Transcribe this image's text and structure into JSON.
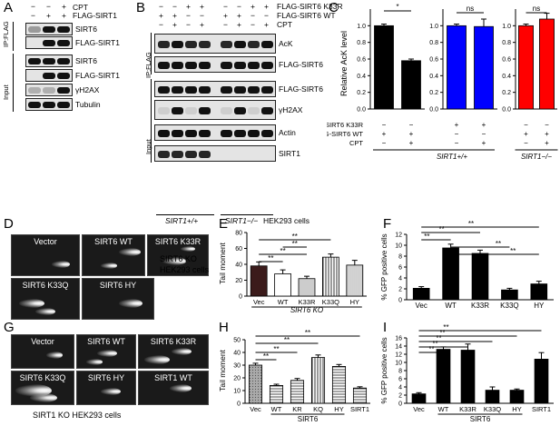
{
  "panels": {
    "A": {
      "letter": "A",
      "cpt_label": "CPT",
      "flag_label": "FLAG-SIRT1",
      "signs_cpt": [
        "−",
        "−",
        "+"
      ],
      "signs_flag": [
        "−",
        "+",
        "+"
      ],
      "ip_label": "IP:FLAG",
      "input_label": "Input",
      "ip_blots": [
        "SIRT6",
        "FLAG-SIRT1"
      ],
      "input_blots": [
        "SIRT6",
        "FLAG-SIRT1",
        "γH2AX",
        "Tubulin"
      ]
    },
    "B": {
      "letter": "B",
      "row_labels": [
        "FLAG-SIRT6 K33R",
        "FLAG-SIRT6 WT",
        "CPT"
      ],
      "signs": [
        [
          "−",
          "−",
          "+",
          "+",
          "−",
          "−",
          "+",
          "+"
        ],
        [
          "+",
          "+",
          "−",
          "−",
          "+",
          "+",
          "−",
          "−"
        ],
        [
          "−",
          "+",
          "−",
          "+",
          "−",
          "+",
          "−",
          "+"
        ]
      ],
      "ip_label": "IP:FLAG",
      "input_label": "Input",
      "ip_blots": [
        "AcK",
        "FLAG-SIRT6"
      ],
      "input_blots": [
        "FLAG-SIRT6",
        "γH2AX",
        "Actin",
        "SIRT1"
      ],
      "genotype_1": "SIRT1+/+",
      "genotype_2": "SIRT1−/−",
      "cells": "HEK293 cells"
    },
    "C": {
      "letter": "C",
      "ylabel": "Relative AcK level",
      "row_labels": [
        "FLAG-SIRT6 K33R",
        "FLAG-SIRT6 WT",
        "CPT"
      ],
      "genotype_1": "SIRT1+/+",
      "genotype_2": "SIRT1−/−",
      "sig_1": "*",
      "sig_2": "ns",
      "sig_3": "ns",
      "tick_labels": [
        "0.0",
        "0.2",
        "0.4",
        "0.6",
        "0.8",
        "1.0"
      ],
      "signs_k33r": [
        "−",
        "−",
        "+",
        "+",
        "−",
        "−"
      ],
      "signs_wt": [
        "+",
        "+",
        "−",
        "−",
        "+",
        "+"
      ],
      "signs_cpt": [
        "−",
        "+",
        "−",
        "+",
        "−",
        "+"
      ]
    },
    "D": {
      "letter": "D",
      "images": [
        "Vector",
        "SIRT6 WT",
        "SIRT6 K33R",
        "SIRT6 K33Q",
        "SIRT6 HY"
      ],
      "caption_1": "SIRT6 KO",
      "caption_2": "HEK293 cells"
    },
    "E": {
      "letter": "E",
      "ylabel": "Tail moment",
      "xlabel": "SIRT6 KO",
      "sig": [
        "**",
        "**",
        "**",
        "**"
      ],
      "tick_labels": [
        "0",
        "20",
        "40",
        "60",
        "80"
      ]
    },
    "F": {
      "letter": "F",
      "ylabel": "% GFP positive cells",
      "sig": [
        "**",
        "**",
        "**",
        "**",
        "**"
      ],
      "tick_labels": [
        "0",
        "2",
        "4",
        "6",
        "8",
        "10",
        "12"
      ]
    },
    "G": {
      "letter": "G",
      "images": [
        "Vector",
        "SIRT6 WT",
        "SIRT6 K33R",
        "SIRT6 K33Q",
        "SIRT6 HY",
        "SIRT1 WT"
      ],
      "caption": "SIRT1 KO HEK293 cells"
    },
    "H": {
      "letter": "H",
      "ylabel": "Tail moment",
      "xlabel": "SIRT6",
      "sig": [
        "**",
        "**",
        "**",
        "**"
      ],
      "tick_labels": [
        "0",
        "10",
        "20",
        "30",
        "40",
        "50"
      ]
    },
    "I": {
      "letter": "I",
      "ylabel": "% GFP positive cells",
      "xlabel": "SIRT6",
      "sig": [
        "**",
        "**",
        "**",
        "**",
        "**"
      ],
      "tick_labels": [
        "0",
        "2",
        "4",
        "6",
        "8",
        "10",
        "12",
        "14",
        "16"
      ]
    }
  },
  "chart_data": [
    {
      "id": "C-left",
      "type": "bar",
      "categories": [
        "WT",
        "WT+CPT"
      ],
      "values": [
        1.0,
        0.58
      ],
      "errors": [
        0.02,
        0.02
      ],
      "ylim": [
        0,
        1.2
      ],
      "color": "#000000"
    },
    {
      "id": "C-middle",
      "type": "bar",
      "categories": [
        "K33R",
        "K33R+CPT"
      ],
      "values": [
        1.0,
        0.99
      ],
      "errors": [
        0.02,
        0.09
      ],
      "ylim": [
        0,
        1.2
      ],
      "color": "#0000ff"
    },
    {
      "id": "C-right",
      "type": "bar",
      "categories": [
        "WT",
        "WT+CPT"
      ],
      "values": [
        1.0,
        1.08
      ],
      "errors": [
        0.02,
        0.07
      ],
      "ylim": [
        0,
        1.2
      ],
      "color": "#ff0000"
    },
    {
      "id": "E",
      "type": "bar",
      "categories": [
        "Vec",
        "WT",
        "K33R",
        "K33Q",
        "HY"
      ],
      "values": [
        38,
        28,
        22,
        49,
        39
      ],
      "errors": [
        5,
        5,
        3,
        4,
        6
      ],
      "ylim": [
        0,
        80
      ]
    },
    {
      "id": "F",
      "type": "bar",
      "categories": [
        "Vec",
        "WT",
        "K33R",
        "K33Q",
        "HY"
      ],
      "values": [
        2.1,
        9.5,
        8.5,
        1.8,
        2.9
      ],
      "errors": [
        0.3,
        0.7,
        0.6,
        0.3,
        0.5
      ],
      "ylim": [
        0,
        12
      ]
    },
    {
      "id": "H",
      "type": "bar",
      "categories": [
        "Vec",
        "WT",
        "KR",
        "KQ",
        "HY",
        "SIRT1"
      ],
      "values": [
        30,
        14,
        18,
        36,
        29,
        12
      ],
      "errors": [
        1.5,
        1,
        1.5,
        2,
        1.5,
        1
      ],
      "ylim": [
        0,
        50
      ]
    },
    {
      "id": "I",
      "type": "bar",
      "categories": [
        "Vec",
        "WT",
        "K33R",
        "K33Q",
        "HY",
        "SIRT1"
      ],
      "values": [
        2.3,
        13.2,
        13.0,
        3.2,
        3.2,
        10.8
      ],
      "errors": [
        0.3,
        0.6,
        1.5,
        0.8,
        0.3,
        1.6
      ],
      "ylim": [
        0,
        16
      ]
    }
  ]
}
